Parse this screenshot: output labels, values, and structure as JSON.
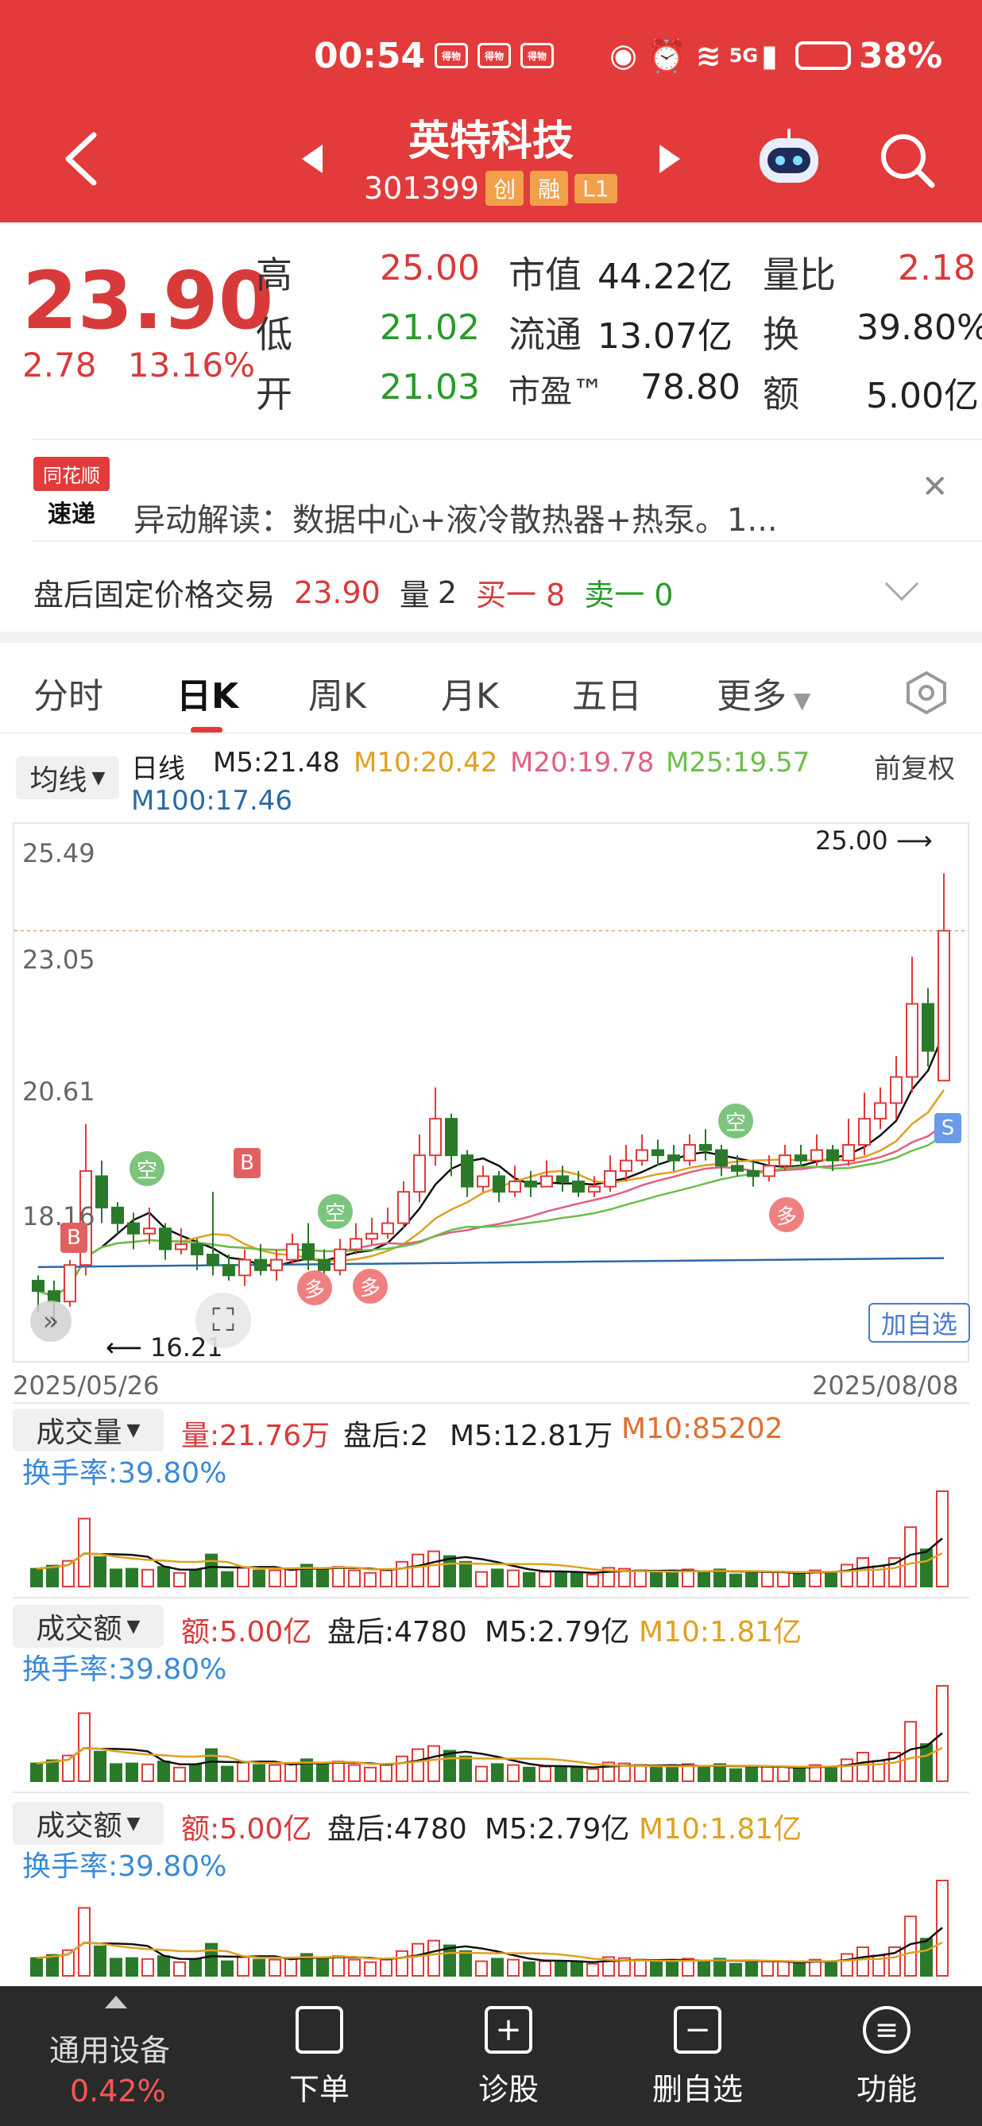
{
  "status": {
    "time": "00:54",
    "app_icons": [
      "得物",
      "得物",
      "得物"
    ],
    "network": "5G",
    "battery": "38%"
  },
  "header": {
    "stock_name": "英特科技",
    "code": "301399",
    "tags": [
      "创",
      "融",
      "L1"
    ]
  },
  "quote": {
    "price": "23.90",
    "change": "2.78",
    "change_pct": "13.16%",
    "high_label": "高",
    "high": "25.00",
    "low_label": "低",
    "low": "21.02",
    "open_label": "开",
    "open": "21.03",
    "mcap_label": "市值",
    "mcap": "44.22亿",
    "float_label": "流通",
    "float": "13.07亿",
    "pe_label": "市盈™",
    "pe": "78.80",
    "vr_label": "量比",
    "vr": "2.18",
    "turn_label": "换",
    "turn": "39.80%",
    "amt_label": "额",
    "amt": "5.00亿"
  },
  "news": {
    "logo_top": "同花顺",
    "logo_bottom": "速递",
    "text": "异动解读：数据中心+液冷散热器+热泵。1..."
  },
  "after_hours": {
    "label": "盘后固定价格交易",
    "price": "23.90",
    "vol_label": "量",
    "vol": "2",
    "buy": "买一 8",
    "sell": "卖一 0"
  },
  "tabs": [
    "分时",
    "日K",
    "周K",
    "月K",
    "五日",
    "更多"
  ],
  "ma": {
    "btn": "均线",
    "type": "日线",
    "m5": "M5:21.48",
    "m10": "M10:20.42",
    "m20": "M20:19.78",
    "m25": "M25:19.57",
    "adj": "前复权",
    "m100": "M100:17.46"
  },
  "chart": {
    "y_labels": [
      "25.49",
      "23.05",
      "20.61",
      "18.16"
    ],
    "high_mark": "25.00",
    "low_mark": "16.21",
    "date_start": "2025/05/26",
    "date_end": "2025/08/08",
    "add_watch": "加自选",
    "b_label": "B",
    "s_label": "S",
    "kong_label": "空",
    "duo_label": "多"
  },
  "volume": {
    "btn": "成交量",
    "vol": "量:21.76万",
    "after": "盘后:2",
    "m5": "M5:12.81万",
    "m10": "M10:85202",
    "turn": "换手率:39.80%"
  },
  "amount": {
    "btn": "成交额",
    "amt": "额:5.00亿",
    "after": "盘后:4780",
    "m5": "M5:2.79亿",
    "m10": "M10:1.81亿",
    "turn": "换手率:39.80%"
  },
  "amount2": {
    "btn": "成交额",
    "amt": "额:5.00亿",
    "after": "盘后:4780",
    "m5": "M5:2.79亿",
    "m10": "M10:1.81亿",
    "turn": "换手率:39.80%"
  },
  "bottom_nav": {
    "sector": "通用设备",
    "sector_pct": "0.42%",
    "items": [
      "下单",
      "诊股",
      "删自选",
      "功能"
    ]
  },
  "chart_data": {
    "type": "candlestick",
    "ylim": [
      16.21,
      25.49
    ],
    "candles": [
      [
        17.2,
        17.0,
        17.3,
        16.6
      ],
      [
        17.0,
        16.8,
        17.2,
        16.3
      ],
      [
        16.8,
        17.5,
        17.6,
        16.7
      ],
      [
        17.5,
        19.3,
        20.2,
        17.3
      ],
      [
        19.2,
        18.6,
        19.5,
        18.3
      ],
      [
        18.6,
        18.3,
        18.7,
        18.1
      ],
      [
        18.3,
        18.1,
        18.5,
        17.8
      ],
      [
        18.1,
        18.2,
        18.6,
        17.9
      ],
      [
        18.2,
        17.8,
        18.3,
        17.6
      ],
      [
        17.8,
        17.9,
        18.2,
        17.7
      ],
      [
        17.9,
        17.7,
        18.0,
        17.4
      ],
      [
        17.7,
        17.5,
        18.9,
        17.3
      ],
      [
        17.5,
        17.3,
        17.7,
        17.2
      ],
      [
        17.3,
        17.6,
        17.8,
        17.1
      ],
      [
        17.6,
        17.4,
        17.9,
        17.3
      ],
      [
        17.4,
        17.6,
        17.8,
        17.2
      ],
      [
        17.6,
        17.9,
        18.1,
        17.5
      ],
      [
        17.9,
        17.6,
        18.3,
        17.4
      ],
      [
        17.6,
        17.4,
        17.8,
        17.1
      ],
      [
        17.4,
        17.8,
        18.0,
        17.3
      ],
      [
        17.8,
        18.0,
        18.3,
        17.7
      ],
      [
        18.0,
        18.1,
        18.4,
        17.9
      ],
      [
        18.1,
        18.3,
        18.6,
        18.0
      ],
      [
        18.3,
        18.9,
        19.1,
        18.2
      ],
      [
        18.9,
        19.6,
        20.0,
        18.7
      ],
      [
        19.6,
        20.3,
        20.9,
        19.4
      ],
      [
        20.3,
        19.6,
        20.4,
        19.2
      ],
      [
        19.6,
        19.0,
        19.7,
        18.8
      ],
      [
        19.0,
        19.2,
        19.4,
        18.9
      ],
      [
        19.2,
        18.9,
        19.3,
        18.7
      ],
      [
        18.9,
        19.1,
        19.4,
        18.8
      ],
      [
        19.1,
        19.0,
        19.3,
        18.8
      ],
      [
        19.0,
        19.2,
        19.5,
        19.0
      ],
      [
        19.2,
        19.1,
        19.4,
        18.9
      ],
      [
        19.1,
        18.9,
        19.3,
        18.8
      ],
      [
        18.9,
        19.0,
        19.2,
        18.8
      ],
      [
        19.0,
        19.3,
        19.6,
        18.9
      ],
      [
        19.3,
        19.5,
        19.8,
        19.1
      ],
      [
        19.5,
        19.7,
        20.0,
        19.4
      ],
      [
        19.7,
        19.6,
        19.9,
        19.4
      ],
      [
        19.6,
        19.5,
        19.8,
        19.3
      ],
      [
        19.5,
        19.8,
        20.0,
        19.4
      ],
      [
        19.8,
        19.7,
        20.1,
        19.5
      ],
      [
        19.7,
        19.4,
        19.8,
        19.2
      ],
      [
        19.4,
        19.3,
        19.6,
        19.2
      ],
      [
        19.3,
        19.2,
        19.5,
        19.0
      ],
      [
        19.2,
        19.4,
        19.6,
        19.1
      ],
      [
        19.4,
        19.6,
        19.8,
        19.3
      ],
      [
        19.6,
        19.5,
        19.8,
        19.4
      ],
      [
        19.5,
        19.7,
        20.0,
        19.4
      ],
      [
        19.7,
        19.5,
        19.8,
        19.3
      ],
      [
        19.5,
        19.8,
        20.3,
        19.4
      ],
      [
        19.8,
        20.3,
        20.8,
        19.6
      ],
      [
        20.3,
        20.6,
        20.9,
        20.1
      ],
      [
        20.6,
        21.1,
        21.5,
        20.3
      ],
      [
        21.1,
        22.5,
        23.4,
        20.8
      ],
      [
        22.5,
        21.6,
        22.8,
        21.3
      ],
      [
        21.03,
        23.9,
        25.0,
        21.02
      ]
    ]
  }
}
